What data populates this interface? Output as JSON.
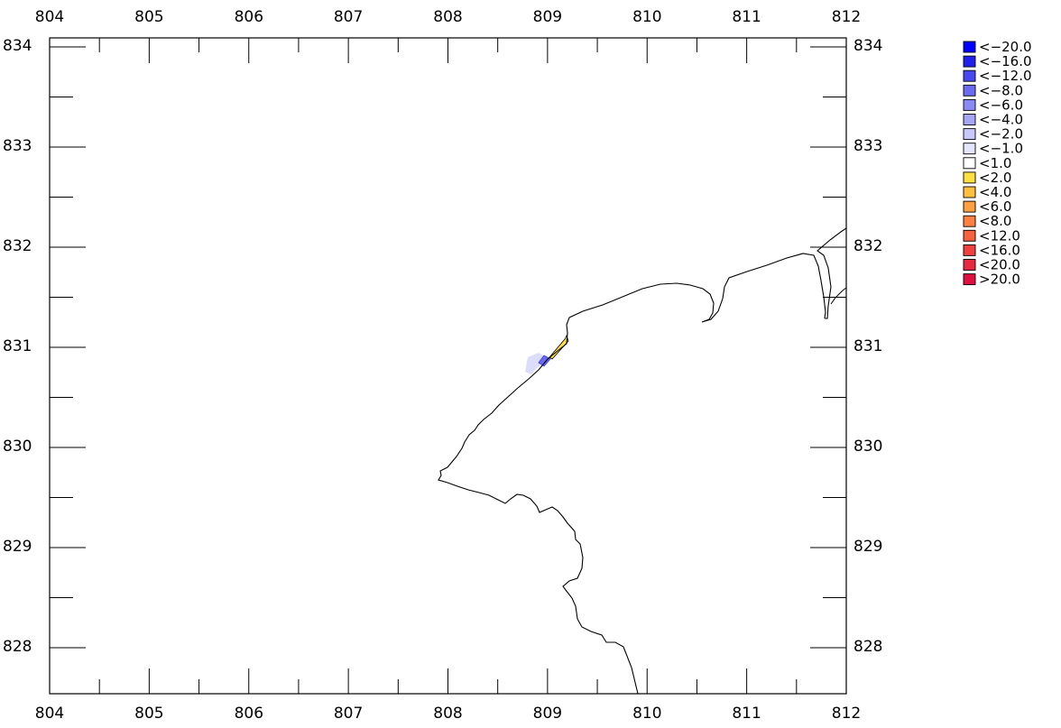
{
  "axes": {
    "x_ticks": [
      "804",
      "805",
      "806",
      "807",
      "808",
      "809",
      "810",
      "811",
      "812"
    ],
    "y_ticks": [
      "834",
      "833",
      "832",
      "831",
      "830",
      "829",
      "828"
    ],
    "x_range": [
      804,
      812
    ],
    "y_range": [
      827.5,
      834.1
    ]
  },
  "legend": {
    "placement": "right",
    "items": [
      {
        "label": "<−20.0",
        "color": "#0000ff"
      },
      {
        "label": "<−16.0",
        "color": "#2020ee"
      },
      {
        "label": "<−12.0",
        "color": "#4848f0"
      },
      {
        "label": "<−8.0",
        "color": "#6a6af2"
      },
      {
        "label": "<−6.0",
        "color": "#8a8af4"
      },
      {
        "label": "<−4.0",
        "color": "#a6a6f6"
      },
      {
        "label": "<−2.0",
        "color": "#c8c8fa"
      },
      {
        "label": "<−1.0",
        "color": "#e4e4fc"
      },
      {
        "label": "<1.0",
        "color": "#ffffff"
      },
      {
        "label": "<2.0",
        "color": "#ffe040"
      },
      {
        "label": "<4.0",
        "color": "#ffc040"
      },
      {
        "label": "<6.0",
        "color": "#ffa040"
      },
      {
        "label": "<8.0",
        "color": "#ff8040"
      },
      {
        "label": "<12.0",
        "color": "#f86040"
      },
      {
        "label": "<16.0",
        "color": "#f04040"
      },
      {
        "label": "<20.0",
        "color": "#e82840"
      },
      {
        "label": ">20.0",
        "color": "#e01040"
      }
    ]
  },
  "colors": {
    "coastline": "#000000",
    "frame": "#000000"
  }
}
